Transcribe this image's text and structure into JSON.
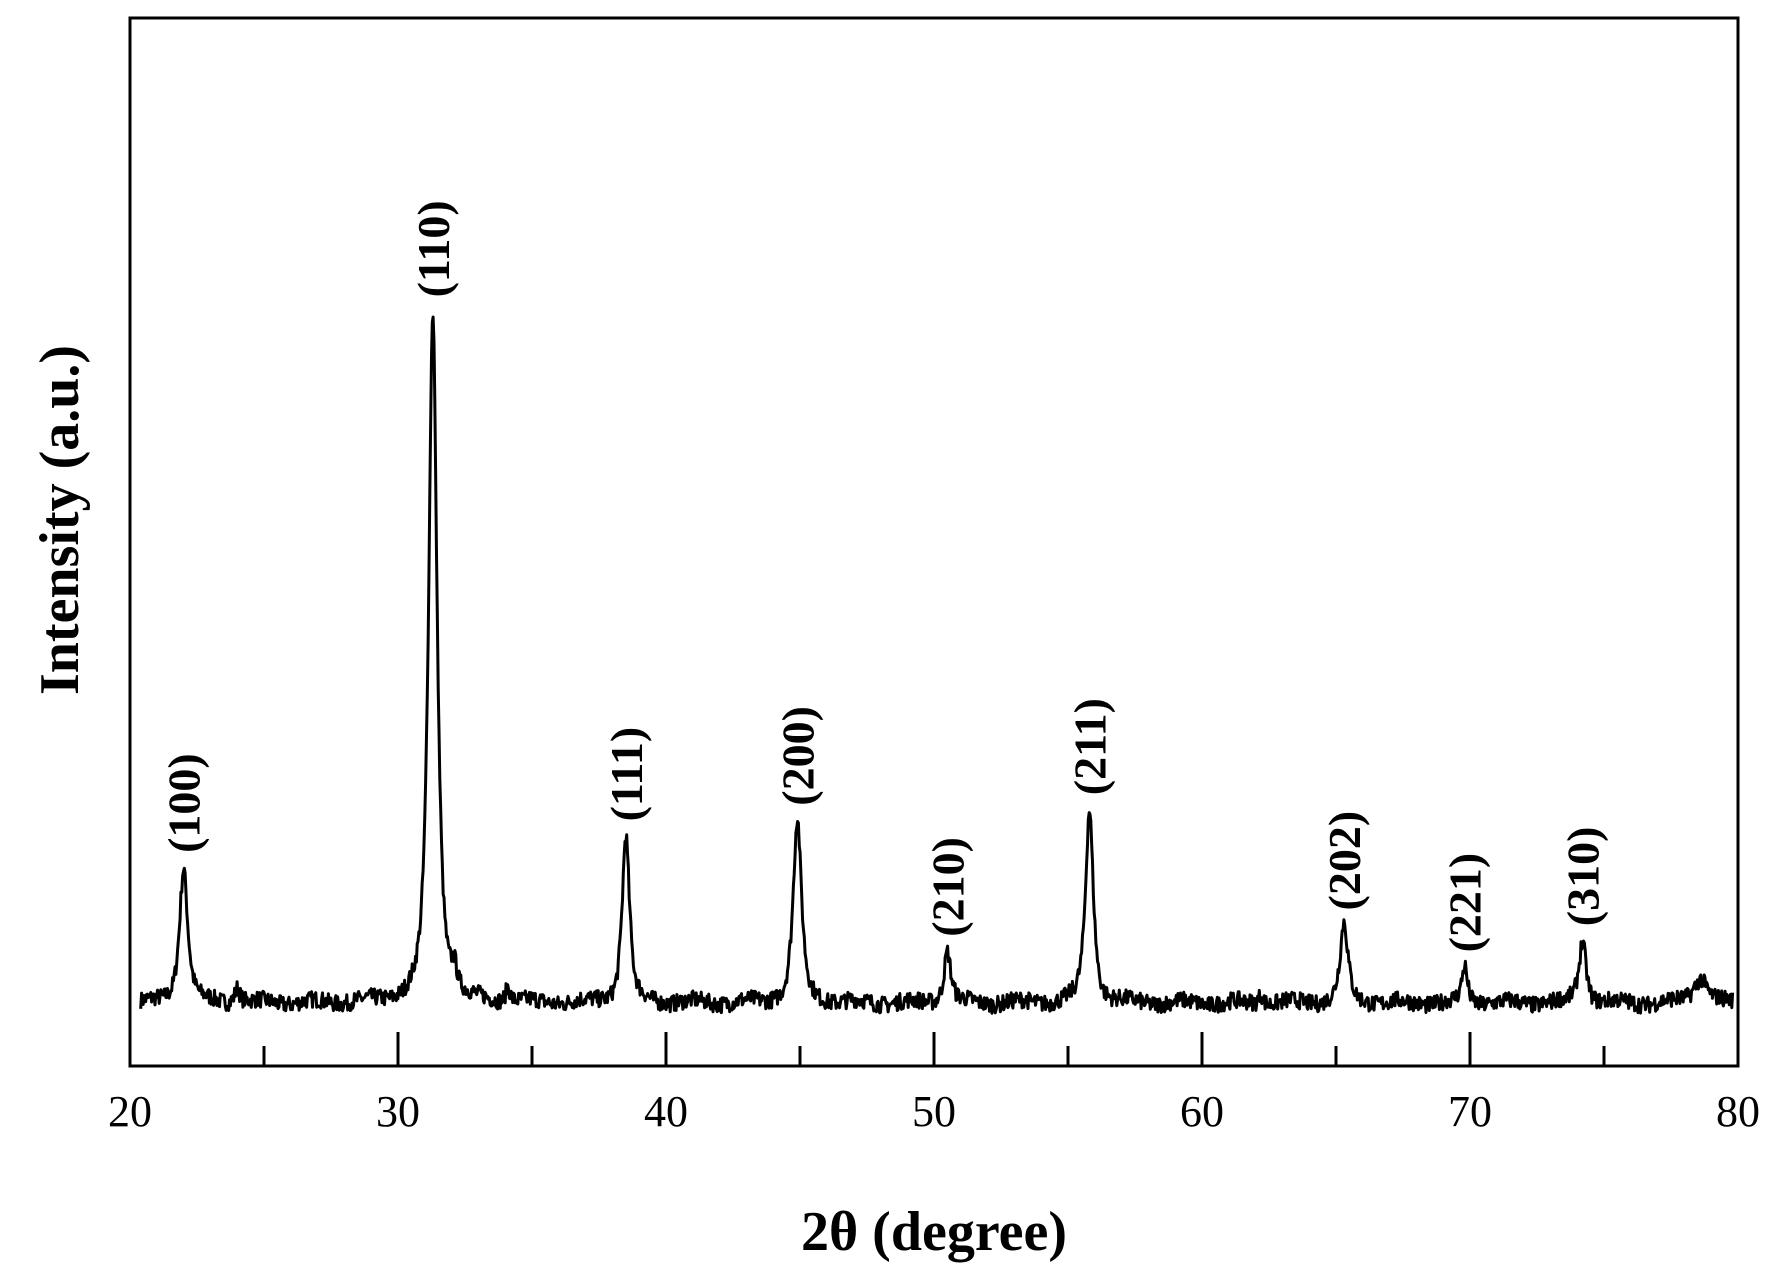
{
  "chart_data": {
    "type": "line",
    "xlabel": "2θ  (degree)",
    "ylabel": "Intensity (a.u.)",
    "xlim": [
      20,
      80
    ],
    "ylim": [
      0,
      100
    ],
    "x_ticks": [
      20,
      30,
      40,
      50,
      60,
      70,
      80
    ],
    "x_minor_ticks": [
      25,
      35,
      45,
      55,
      65,
      75
    ],
    "y_tick_labels": "none",
    "grid": false,
    "legend": "none",
    "line_color": "#000000",
    "baseline": 6,
    "peaks": [
      {
        "label": "(100)",
        "x": 22.0,
        "y": 19,
        "width": 0.18
      },
      {
        "label": "(110)",
        "x": 31.3,
        "y": 72,
        "width": 0.18
      },
      {
        "label": "(111)",
        "x": 38.5,
        "y": 22,
        "width": 0.16
      },
      {
        "label": "(200)",
        "x": 44.9,
        "y": 23.5,
        "width": 0.18
      },
      {
        "label": "(210)",
        "x": 50.5,
        "y": 11,
        "width": 0.15
      },
      {
        "label": "(211)",
        "x": 55.8,
        "y": 24.5,
        "width": 0.17
      },
      {
        "label": "(202)",
        "x": 65.3,
        "y": 13.5,
        "width": 0.17
      },
      {
        "label": "(221)",
        "x": 69.8,
        "y": 9.5,
        "width": 0.12
      },
      {
        "label": "(310)",
        "x": 74.2,
        "y": 12,
        "width": 0.16
      }
    ],
    "minor_features": [
      {
        "x": 24.0,
        "y": 7.5,
        "width": 0.12
      },
      {
        "x": 32.1,
        "y": 8,
        "width": 0.12
      },
      {
        "x": 34.1,
        "y": 7.5,
        "width": 0.1
      },
      {
        "x": 62.2,
        "y": 7,
        "width": 0.1
      },
      {
        "x": 78.6,
        "y": 8.5,
        "width": 0.3
      }
    ]
  }
}
